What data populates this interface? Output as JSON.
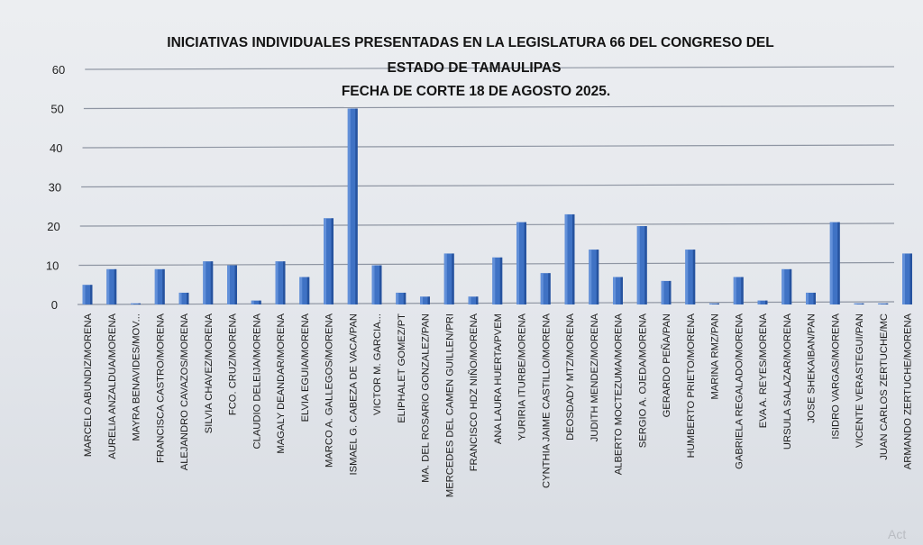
{
  "chart_data": {
    "type": "bar",
    "title": [
      "INICIATIVAS INDIVIDUALES PRESENTADAS EN LA LEGISLATURA 66 DEL CONGRESO DEL",
      "ESTADO DE TAMAULIPAS",
      "FECHA DE CORTE 18 DE AGOSTO 2025."
    ],
    "xlabel": "",
    "ylabel": "",
    "ylim": [
      0,
      60
    ],
    "yticks": [
      0,
      10,
      20,
      30,
      40,
      50,
      60
    ],
    "grid": true,
    "legend": "none",
    "bar_color": "#3f72c4",
    "categories": [
      "MARCELO ABUNDIZ/MORENA",
      "AURELIA ANZALDUA/MORENA",
      "MAYRA BENAVIDES/MOV...",
      "FRANCISCA CASTRO/MORENA",
      "ALEJANDRO CAVAZOS/MORENA",
      "SILVIA CHAVEZ/MORENA",
      "FCO. CRUZ/MORENA",
      "CLAUDIO DELEIJA/MORENA",
      "MAGALY DEANDAR/MORENA",
      "ELVIA EGUIA/MORENA",
      "MARCO A. GALLEGOS/MORENA",
      "ISMAEL G. CABEZA DE VACA/PAN",
      "VICTOR M. GARCIA...",
      "ELIPHALET GOMEZ/PT",
      "MA. DEL ROSARIO GONZALEZ/PAN",
      "MERCEDES DEL CAMEN GUILLEN/PRI",
      "FRANCISCO HDZ NIÑO/MORENA",
      "ANA LAURA HUERTA/PVEM",
      "YURIRIA ITURBE/MORENA",
      "CYNTHIA JAIME CASTILLO/MORENA",
      "DEOSDADY MTZ/MORENA",
      "JUDITH MENDEZ/MORENA",
      "ALBERTO MOCTEZUMA/MORENA",
      "SERGIO A. OJEDA/MORENA",
      "GERARDO PEÑA/PAN",
      "HUMBERTO PRIETO/MORENA",
      "MARINA RMZ/PAN",
      "GABRIELA REGALADO/MORENA",
      "EVA A. REYES/MORENA",
      "URSULA SALAZAR/MORENA",
      "JOSE SHEKAIBAN/PAN",
      "ISIDRO VARGAS/MORENA",
      "VICENTE VERASTEGUI/PAN",
      "JUAN CARLOS ZERTUCHE/MC",
      "ARMANDO ZERTUCHE/MORENA"
    ],
    "values": [
      5,
      9,
      0,
      9,
      3,
      11,
      10,
      1,
      11,
      7,
      22,
      50,
      10,
      3,
      2,
      13,
      2,
      12,
      21,
      8,
      23,
      14,
      7,
      20,
      6,
      14,
      0,
      7,
      1,
      9,
      3,
      21,
      0,
      0,
      13
    ]
  },
  "watermark": "Act"
}
